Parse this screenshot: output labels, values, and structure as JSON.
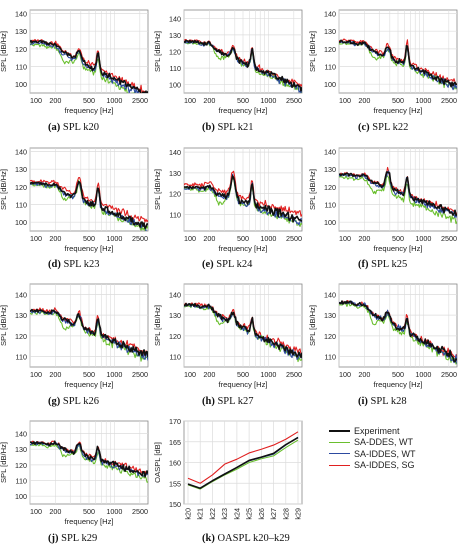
{
  "figure": {
    "background": "#ffffff"
  },
  "colors": {
    "experiment": "#111111",
    "sa_ddes_wt": "#6abf2e",
    "sa_iddes_wt": "#2c4aa0",
    "sa_iddes_sg": "#e02020",
    "grid": "#dcdcdc",
    "axis": "#888888"
  },
  "legend": {
    "placement": "right of panel k",
    "entries": [
      {
        "label": "Experiment",
        "color_key": "experiment"
      },
      {
        "label": "SA-DDES, WT",
        "color_key": "sa_ddes_wt"
      },
      {
        "label": "SA-IDDES, WT",
        "color_key": "sa_iddes_wt"
      },
      {
        "label": "SA-IDDES, SG",
        "color_key": "sa_iddes_sg"
      }
    ]
  },
  "chart_data": [
    {
      "id": "a",
      "caption_letter": "(a)",
      "caption_text": "SPL k20",
      "type": "line",
      "xscale": "log",
      "xlim": [
        100,
        2500
      ],
      "ylim": [
        95,
        142
      ],
      "xticks": [
        100,
        200,
        500,
        1000,
        2500
      ],
      "xtick_labels": [
        "100",
        "200",
        "500",
        "1000",
        "2500"
      ],
      "yticks": [
        100,
        110,
        120,
        130,
        140
      ],
      "ytick_labels": [
        "100",
        "110",
        "120",
        "130",
        "140"
      ],
      "xlabel": "frequency [Hz]",
      "ylabel": "SPL [dB/Hz]",
      "grid": true,
      "base": 124,
      "p1": {
        "f": 380,
        "h": 6
      },
      "p2": {
        "f": 640,
        "h": 10
      },
      "decay": 27,
      "offsets": [
        0,
        -4,
        -2,
        1.5
      ],
      "series": [
        {
          "name": "Experiment"
        },
        {
          "name": "SA-DDES, WT"
        },
        {
          "name": "SA-IDDES, WT"
        },
        {
          "name": "SA-IDDES, SG"
        }
      ]
    },
    {
      "id": "b",
      "caption_letter": "(b)",
      "caption_text": "SPL k21",
      "type": "line",
      "xscale": "log",
      "xlim": [
        100,
        2500
      ],
      "ylim": [
        95,
        145
      ],
      "xticks": [
        100,
        200,
        500,
        1000,
        2500
      ],
      "xtick_labels": [
        "100",
        "200",
        "500",
        "1000",
        "2500"
      ],
      "yticks": [
        100,
        110,
        120,
        130,
        140
      ],
      "ytick_labels": [
        "100",
        "110",
        "120",
        "130",
        "140"
      ],
      "xlabel": "frequency [Hz]",
      "ylabel": "SPL [dB/Hz]",
      "grid": true,
      "base": 126,
      "p1": {
        "f": 380,
        "h": 6
      },
      "p2": {
        "f": 640,
        "h": 10
      },
      "decay": 25,
      "offsets": [
        0,
        -2,
        -1,
        1
      ],
      "series": [
        {
          "name": "Experiment"
        },
        {
          "name": "SA-DDES, WT"
        },
        {
          "name": "SA-IDDES, WT"
        },
        {
          "name": "SA-IDDES, SG"
        }
      ]
    },
    {
      "id": "c",
      "caption_letter": "(c)",
      "caption_text": "SPL k22",
      "type": "line",
      "xscale": "log",
      "xlim": [
        100,
        2500
      ],
      "ylim": [
        95,
        142
      ],
      "xticks": [
        100,
        200,
        500,
        1000,
        2500
      ],
      "xtick_labels": [
        "100",
        "200",
        "500",
        "1000",
        "2500"
      ],
      "yticks": [
        100,
        110,
        120,
        130,
        140
      ],
      "ytick_labels": [
        "100",
        "110",
        "120",
        "130",
        "140"
      ],
      "xlabel": "frequency [Hz]",
      "ylabel": "SPL [dB/Hz]",
      "grid": true,
      "base": 124,
      "p1": {
        "f": 380,
        "h": 6
      },
      "p2": {
        "f": 640,
        "h": 12
      },
      "decay": 22,
      "offsets": [
        0,
        -2,
        -1,
        1.5
      ],
      "series": [
        {
          "name": "Experiment"
        },
        {
          "name": "SA-DDES, WT"
        },
        {
          "name": "SA-IDDES, WT"
        },
        {
          "name": "SA-IDDES, SG"
        }
      ]
    },
    {
      "id": "d",
      "caption_letter": "(d)",
      "caption_text": "SPL k23",
      "type": "line",
      "xscale": "log",
      "xlim": [
        100,
        2500
      ],
      "ylim": [
        95,
        142
      ],
      "xticks": [
        100,
        200,
        500,
        1000,
        2500
      ],
      "xtick_labels": [
        "100",
        "200",
        "500",
        "1000",
        "2500"
      ],
      "yticks": [
        100,
        110,
        120,
        130,
        140
      ],
      "ytick_labels": [
        "100",
        "110",
        "120",
        "130",
        "140"
      ],
      "xlabel": "frequency [Hz]",
      "ylabel": "SPL [dB/Hz]",
      "grid": true,
      "base": 122,
      "p1": {
        "f": 380,
        "h": 10
      },
      "p2": {
        "f": 640,
        "h": 12
      },
      "decay": 22,
      "offsets": [
        0,
        -2,
        -1,
        3
      ],
      "series": [
        {
          "name": "Experiment"
        },
        {
          "name": "SA-DDES, WT"
        },
        {
          "name": "SA-IDDES, WT"
        },
        {
          "name": "SA-IDDES, SG"
        }
      ]
    },
    {
      "id": "e",
      "caption_letter": "(e)",
      "caption_text": "SPL k24",
      "type": "line",
      "xscale": "log",
      "xlim": [
        100,
        2500
      ],
      "ylim": [
        102,
        142
      ],
      "xticks": [
        100,
        200,
        500,
        1000,
        2500
      ],
      "xtick_labels": [
        "100",
        "200",
        "500",
        "1000",
        "2500"
      ],
      "yticks": [
        110,
        120,
        130,
        140
      ],
      "ytick_labels": [
        "110",
        "120",
        "130",
        "140"
      ],
      "xlabel": "frequency [Hz]",
      "ylabel": "SPL [dB/Hz]",
      "grid": true,
      "base": 123,
      "p1": {
        "f": 380,
        "h": 12
      },
      "p2": {
        "f": 640,
        "h": 10
      },
      "decay": 14,
      "offsets": [
        0,
        -2,
        -1,
        3
      ],
      "series": [
        {
          "name": "Experiment"
        },
        {
          "name": "SA-DDES, WT"
        },
        {
          "name": "SA-IDDES, WT"
        },
        {
          "name": "SA-IDDES, SG"
        }
      ]
    },
    {
      "id": "f",
      "caption_letter": "(f)",
      "caption_text": "SPL k25",
      "type": "line",
      "xscale": "log",
      "xlim": [
        100,
        2500
      ],
      "ylim": [
        95,
        142
      ],
      "xticks": [
        100,
        200,
        500,
        1000,
        2500
      ],
      "xtick_labels": [
        "100",
        "200",
        "500",
        "1000",
        "2500"
      ],
      "yticks": [
        100,
        110,
        120,
        130,
        140
      ],
      "ytick_labels": [
        "100",
        "110",
        "120",
        "130",
        "140"
      ],
      "xlabel": "frequency [Hz]",
      "ylabel": "SPL [dB/Hz]",
      "grid": true,
      "base": 127,
      "p1": {
        "f": 380,
        "h": 10
      },
      "p2": {
        "f": 640,
        "h": 10
      },
      "decay": 20,
      "offsets": [
        0,
        -4,
        -1,
        1
      ],
      "series": [
        {
          "name": "Experiment"
        },
        {
          "name": "SA-DDES, WT"
        },
        {
          "name": "SA-IDDES, WT"
        },
        {
          "name": "SA-IDDES, SG"
        }
      ]
    },
    {
      "id": "g",
      "caption_letter": "(g)",
      "caption_text": "SPL k26",
      "type": "line",
      "xscale": "log",
      "xlim": [
        100,
        2500
      ],
      "ylim": [
        105,
        145
      ],
      "xticks": [
        100,
        200,
        500,
        1000,
        2500
      ],
      "xtick_labels": [
        "100",
        "200",
        "500",
        "1000",
        "2500"
      ],
      "yticks": [
        110,
        120,
        130,
        140
      ],
      "ytick_labels": [
        "110",
        "120",
        "130",
        "140"
      ],
      "xlabel": "frequency [Hz]",
      "ylabel": "SPL [dB/Hz]",
      "grid": true,
      "base": 132,
      "p1": {
        "f": 380,
        "h": 6
      },
      "p2": {
        "f": 640,
        "h": 8
      },
      "decay": 19,
      "offsets": [
        0,
        -2,
        -1,
        1
      ],
      "series": [
        {
          "name": "Experiment"
        },
        {
          "name": "SA-DDES, WT"
        },
        {
          "name": "SA-IDDES, WT"
        },
        {
          "name": "SA-IDDES, SG"
        }
      ]
    },
    {
      "id": "h",
      "caption_letter": "(h)",
      "caption_text": "SPL k27",
      "type": "line",
      "xscale": "log",
      "xlim": [
        100,
        2500
      ],
      "ylim": [
        105,
        145
      ],
      "xticks": [
        100,
        200,
        500,
        1000,
        2500
      ],
      "xtick_labels": [
        "100",
        "200",
        "500",
        "1000",
        "2500"
      ],
      "yticks": [
        110,
        120,
        130,
        140
      ],
      "ytick_labels": [
        "110",
        "120",
        "130",
        "140"
      ],
      "xlabel": "frequency [Hz]",
      "ylabel": "SPL [dB/Hz]",
      "grid": true,
      "base": 135,
      "p1": {
        "f": 380,
        "h": 5
      },
      "p2": {
        "f": 640,
        "h": 7
      },
      "decay": 22,
      "offsets": [
        0,
        -1.5,
        -1,
        1
      ],
      "series": [
        {
          "name": "Experiment"
        },
        {
          "name": "SA-DDES, WT"
        },
        {
          "name": "SA-IDDES, WT"
        },
        {
          "name": "SA-IDDES, SG"
        }
      ]
    },
    {
      "id": "i",
      "caption_letter": "(i)",
      "caption_text": "SPL k28",
      "type": "line",
      "xscale": "log",
      "xlim": [
        100,
        2500
      ],
      "ylim": [
        105,
        145
      ],
      "xticks": [
        100,
        200,
        500,
        1000,
        2500
      ],
      "xtick_labels": [
        "100",
        "200",
        "500",
        "1000",
        "2500"
      ],
      "yticks": [
        110,
        120,
        130,
        140
      ],
      "ytick_labels": [
        "110",
        "120",
        "130",
        "140"
      ],
      "xlabel": "frequency [Hz]",
      "ylabel": "SPL [dB/Hz]",
      "grid": true,
      "base": 136,
      "p1": {
        "f": 380,
        "h": 5
      },
      "p2": {
        "f": 640,
        "h": 7
      },
      "decay": 24,
      "offsets": [
        0,
        -2,
        -0.5,
        0.5
      ],
      "series": [
        {
          "name": "Experiment"
        },
        {
          "name": "SA-DDES, WT"
        },
        {
          "name": "SA-IDDES, WT"
        },
        {
          "name": "SA-IDDES, SG"
        }
      ]
    },
    {
      "id": "j",
      "caption_letter": "(j)",
      "caption_text": "SPL k29",
      "type": "line",
      "xscale": "log",
      "xlim": [
        100,
        2500
      ],
      "ylim": [
        95,
        148
      ],
      "xticks": [
        100,
        200,
        500,
        1000,
        2500
      ],
      "xtick_labels": [
        "100",
        "200",
        "500",
        "1000",
        "2500"
      ],
      "yticks": [
        100,
        110,
        120,
        130,
        140
      ],
      "ytick_labels": [
        "100",
        "110",
        "120",
        "130",
        "140"
      ],
      "xlabel": "frequency [Hz]",
      "ylabel": "SPL [dB/Hz]",
      "grid": true,
      "base": 134,
      "p1": {
        "f": 380,
        "h": 7
      },
      "p2": {
        "f": 640,
        "h": 8
      },
      "decay": 18,
      "offsets": [
        0,
        -3,
        -1,
        1
      ],
      "series": [
        {
          "name": "Experiment"
        },
        {
          "name": "SA-DDES, WT"
        },
        {
          "name": "SA-IDDES, WT"
        },
        {
          "name": "SA-IDDES, SG"
        }
      ]
    },
    {
      "id": "k",
      "caption_letter": "(k)",
      "caption_text": "OASPL k20–k29",
      "type": "line",
      "categories": [
        "k20",
        "k21",
        "k22",
        "k23",
        "k24",
        "k25",
        "k26",
        "k27",
        "k28",
        "k29"
      ],
      "ylim": [
        150,
        170
      ],
      "yticks": [
        150,
        155,
        160,
        165,
        170
      ],
      "ytick_labels": [
        "150",
        "155",
        "160",
        "165",
        "170"
      ],
      "xlabel": "",
      "ylabel": "OASPL [dB]",
      "grid": true,
      "series": [
        {
          "name": "Experiment",
          "values": [
            154.8,
            153.8,
            155.6,
            157.2,
            158.8,
            160.5,
            161.3,
            162.2,
            164.3,
            166.0
          ]
        },
        {
          "name": "SA-DDES, WT",
          "values": [
            154.6,
            153.6,
            155.4,
            157.0,
            158.4,
            160.0,
            160.9,
            161.6,
            163.6,
            165.4
          ]
        },
        {
          "name": "SA-IDDES, WT",
          "values": [
            154.8,
            153.8,
            155.6,
            157.3,
            158.8,
            160.4,
            161.2,
            162.0,
            164.2,
            166.1
          ]
        },
        {
          "name": "SA-IDDES, SG",
          "values": [
            156.2,
            155.0,
            157.0,
            159.6,
            160.8,
            162.3,
            163.2,
            164.2,
            165.6,
            167.4
          ]
        }
      ]
    }
  ]
}
